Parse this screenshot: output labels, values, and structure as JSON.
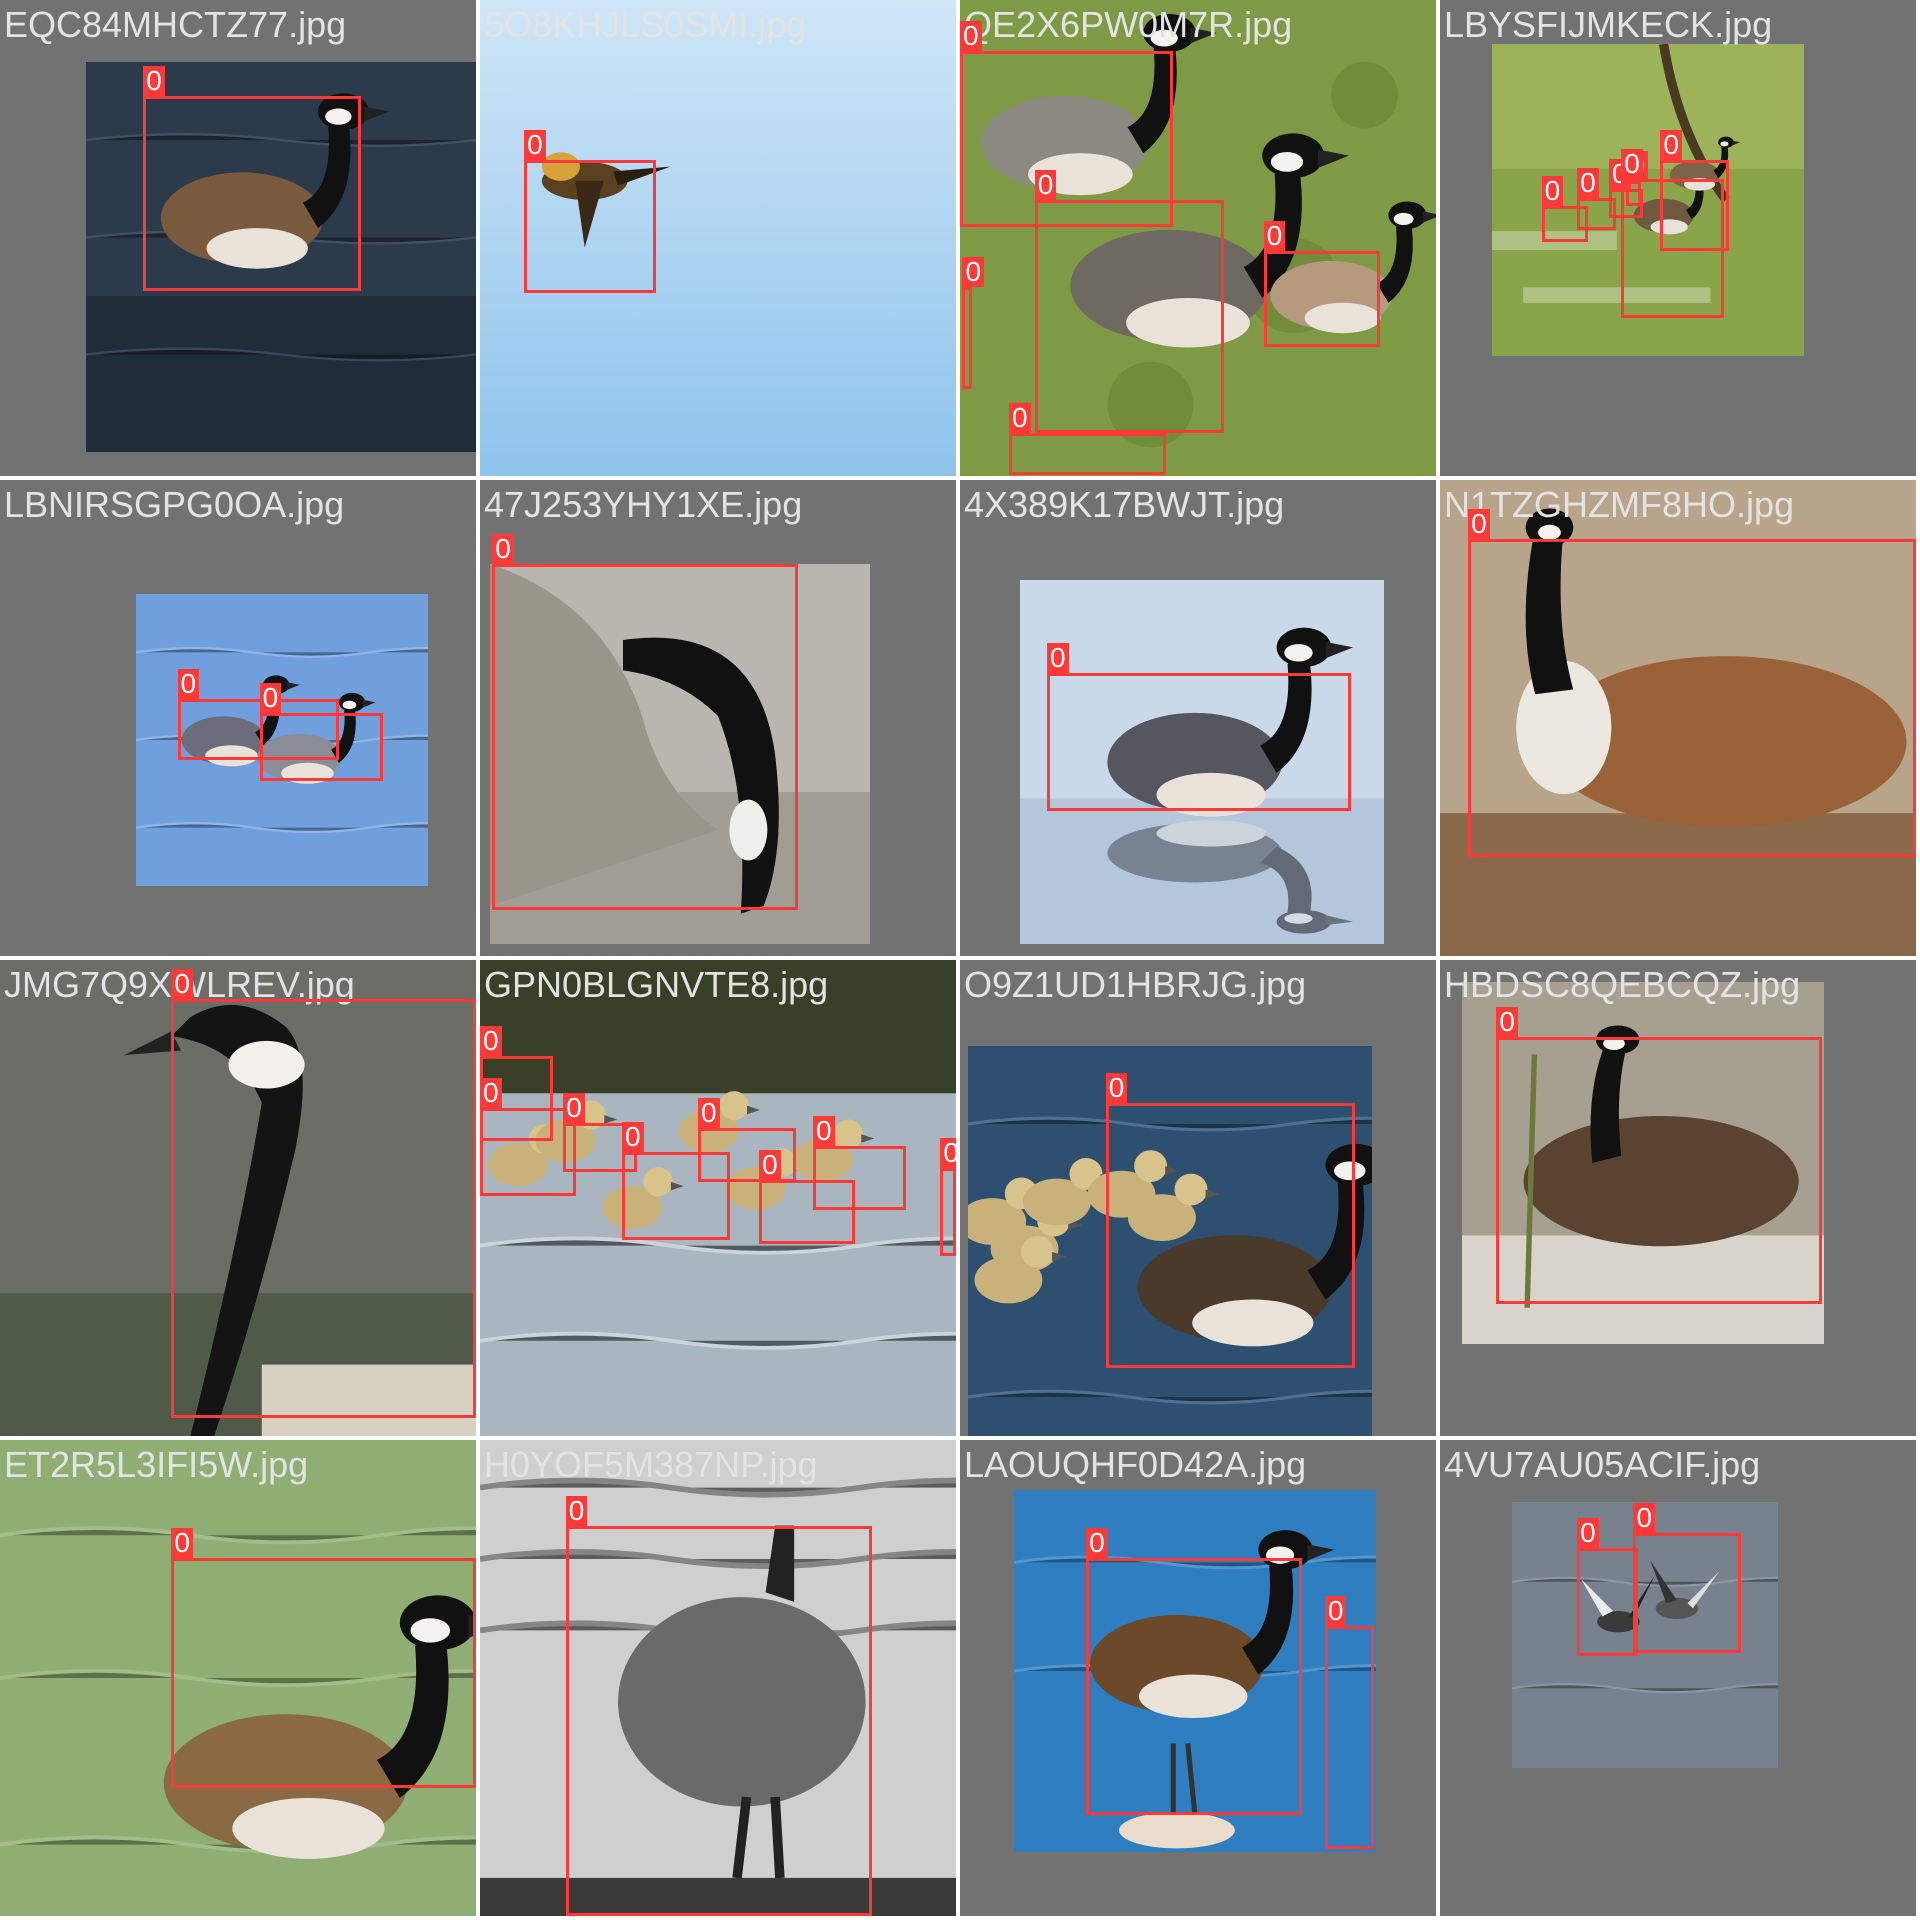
{
  "colors": {
    "box": "#ff3838",
    "label_text": "#ffffff",
    "filename_text": "#e3e3e3",
    "tile_background": "#727272"
  },
  "tiles": [
    {
      "filename": "EQC84MHCTZ77.jpg",
      "scene": "goose-water-dark",
      "boxes": [
        {
          "label": "0"
        }
      ]
    },
    {
      "filename": "5O8KHJLS0SMI.jpg",
      "scene": "flying-sky",
      "boxes": [
        {
          "label": "0"
        }
      ]
    },
    {
      "filename": "QE2X6PW0M7R.jpg",
      "scene": "grass-flock",
      "boxes": [
        {
          "label": "0"
        },
        {
          "label": "0"
        },
        {
          "label": "0"
        },
        {
          "label": "0"
        },
        {
          "label": "0"
        }
      ]
    },
    {
      "filename": "LBYSFIJMKECK.jpg",
      "scene": "pond-tree",
      "boxes": [
        {
          "label": "0"
        },
        {
          "label": "0"
        },
        {
          "label": "0"
        },
        {
          "label": "0"
        },
        {
          "label": "0"
        },
        {
          "label": "0"
        }
      ]
    },
    {
      "filename": "LBNIRSGPG0OA.jpg",
      "scene": "blue-water-pair",
      "boxes": [
        {
          "label": "0"
        },
        {
          "label": "0"
        }
      ]
    },
    {
      "filename": "47J253YHY1XE.jpg",
      "scene": "grey-grazing",
      "boxes": [
        {
          "label": "0"
        }
      ]
    },
    {
      "filename": "4X389K17BWJT.jpg",
      "scene": "calm-water",
      "boxes": [
        {
          "label": "0"
        }
      ]
    },
    {
      "filename": "N1TZGHZMF8HO.jpg",
      "scene": "nesting-ground",
      "boxes": [
        {
          "label": "0"
        }
      ]
    },
    {
      "filename": "JMG7Q9XWLREV.jpg",
      "scene": "closeup-head",
      "boxes": [
        {
          "label": "0"
        }
      ]
    },
    {
      "filename": "GPN0BLGNVTE8.jpg",
      "scene": "goslings-pond",
      "boxes": [
        {
          "label": "0"
        },
        {
          "label": "0"
        },
        {
          "label": "0"
        },
        {
          "label": "0"
        },
        {
          "label": "0"
        },
        {
          "label": "0"
        },
        {
          "label": "0"
        },
        {
          "label": "0"
        },
        {
          "label": "0"
        }
      ]
    },
    {
      "filename": "O9Z1UD1HBRJG.jpg",
      "scene": "goose-goslings",
      "boxes": [
        {
          "label": "0"
        }
      ]
    },
    {
      "filename": "HBDSC8QEBCQZ.jpg",
      "scene": "nest-grass",
      "boxes": [
        {
          "label": "0"
        }
      ]
    },
    {
      "filename": "ET2R5L3IFI5W.jpg",
      "scene": "green-water",
      "boxes": [
        {
          "label": "0"
        }
      ]
    },
    {
      "filename": "H0YOF5M387NP.jpg",
      "scene": "bw-standing",
      "boxes": [
        {
          "label": "0"
        }
      ]
    },
    {
      "filename": "LAOUQHF0D42A.jpg",
      "scene": "blue-water-stand",
      "boxes": [
        {
          "label": "0"
        },
        {
          "label": "0"
        }
      ]
    },
    {
      "filename": "4VU7AU05ACIF.jpg",
      "scene": "flying-pair",
      "boxes": [
        {
          "label": "0"
        },
        {
          "label": "0"
        }
      ]
    }
  ]
}
